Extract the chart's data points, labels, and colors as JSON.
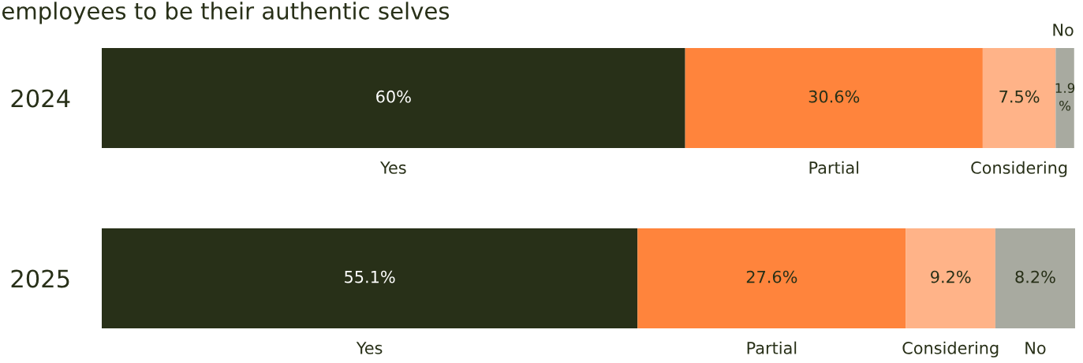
{
  "chart_data": {
    "type": "bar",
    "orientation": "horizontal",
    "stacked": true,
    "title": "employees to be their authentic selves",
    "categories": [
      "2024",
      "2025"
    ],
    "series": [
      {
        "name": "Yes",
        "color": "#283018",
        "values": [
          60,
          55.1
        ],
        "value_labels": [
          "60%",
          "55.1%"
        ]
      },
      {
        "name": "Partial",
        "color": "#ff843c",
        "values": [
          30.6,
          27.6
        ],
        "value_labels": [
          "30.6%",
          "27.6%"
        ]
      },
      {
        "name": "Considering",
        "color": "#ffb388",
        "values": [
          7.5,
          9.2
        ],
        "value_labels": [
          "7.5%",
          "9.2%"
        ]
      },
      {
        "name": "No",
        "color": "#a8aaa0",
        "values": [
          1.9,
          8.2
        ],
        "value_labels": [
          "1.9%",
          "8.2%"
        ]
      }
    ],
    "grid": false,
    "legend": false
  }
}
